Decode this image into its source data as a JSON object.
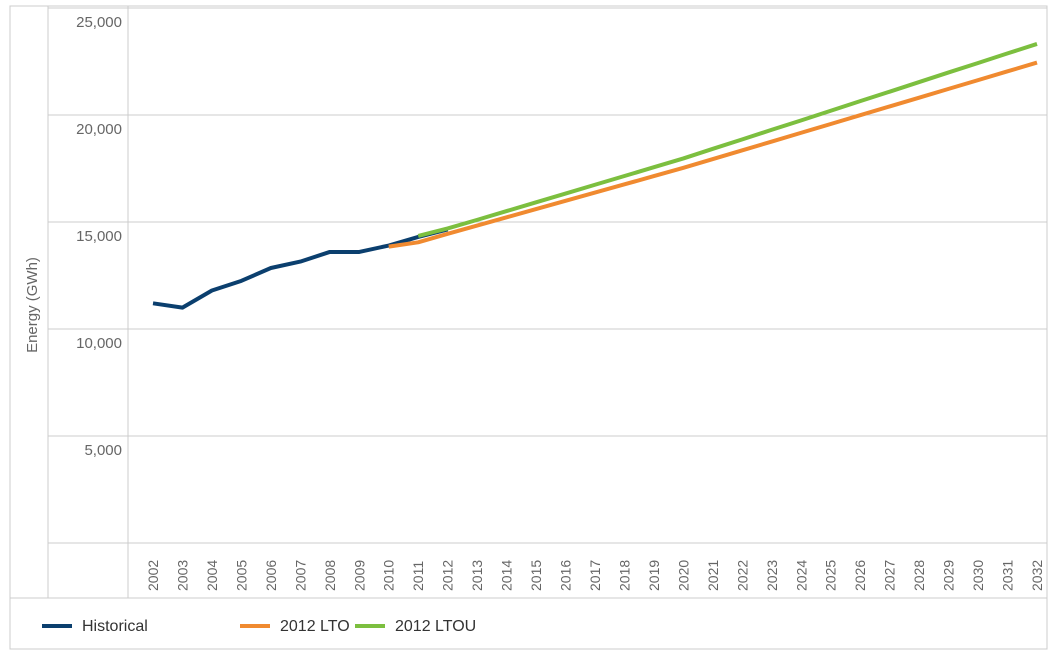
{
  "chart_data": {
    "type": "line",
    "y_label": "Energy (GWh)",
    "categories": [
      "2002",
      "2003",
      "2004",
      "2005",
      "2006",
      "2007",
      "2008",
      "2009",
      "2010",
      "2011",
      "2012",
      "2013",
      "2014",
      "2015",
      "2016",
      "2017",
      "2018",
      "2019",
      "2020",
      "2021",
      "2022",
      "2023",
      "2024",
      "2025",
      "2026",
      "2027",
      "2028",
      "2029",
      "2030",
      "2031",
      "2032"
    ],
    "series": [
      {
        "name": "Historical",
        "color": "#0b3f6e",
        "values": [
          11200,
          11000,
          11800,
          12250,
          12850,
          13150,
          13600,
          13600,
          13900,
          14300,
          14650,
          null,
          null,
          null,
          null,
          null,
          null,
          null,
          null,
          null,
          null,
          null,
          null,
          null,
          null,
          null,
          null,
          null,
          null,
          null,
          null
        ]
      },
      {
        "name": "2012 LTO",
        "color": "#f08a30",
        "values": [
          null,
          null,
          null,
          null,
          null,
          null,
          null,
          null,
          13850,
          14050,
          14450,
          14835,
          15220,
          15605,
          15990,
          16375,
          16760,
          17145,
          17530,
          17940,
          18350,
          18760,
          19170,
          19580,
          19990,
          20400,
          20810,
          21220,
          21630,
          22040,
          22450
        ]
      },
      {
        "name": "2012 LTOU",
        "color": "#7cbf3f",
        "values": [
          null,
          null,
          null,
          null,
          null,
          null,
          null,
          null,
          null,
          14350,
          14700,
          15100,
          15510,
          15920,
          16330,
          16740,
          17150,
          17560,
          17970,
          18420,
          18860,
          19310,
          19750,
          20200,
          20650,
          21090,
          21540,
          21990,
          22430,
          22880,
          23320
        ]
      }
    ],
    "ylim": [
      0,
      25000
    ],
    "yticks": [
      {
        "value": 5000,
        "label": "5,000"
      },
      {
        "value": 10000,
        "label": "10,000"
      },
      {
        "value": 15000,
        "label": "15,000"
      },
      {
        "value": 20000,
        "label": "20,000"
      },
      {
        "value": 25000,
        "label": "25,000"
      }
    ],
    "grid": true
  }
}
